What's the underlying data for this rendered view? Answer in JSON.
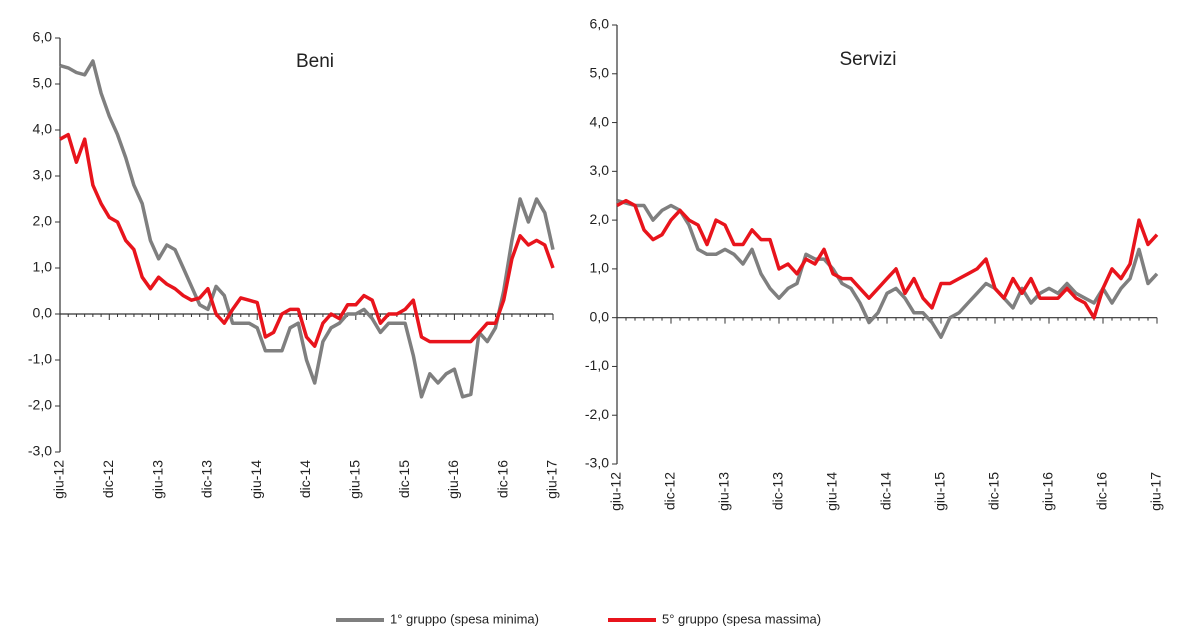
{
  "chart_data": [
    {
      "type": "line",
      "title": "Beni",
      "categories": [
        "giu-12",
        null,
        null,
        null,
        null,
        null,
        "dic-12",
        null,
        null,
        null,
        null,
        null,
        "giu-13",
        null,
        null,
        null,
        null,
        null,
        "dic-13",
        null,
        null,
        null,
        null,
        null,
        "giu-14",
        null,
        null,
        null,
        null,
        null,
        "dic-14",
        null,
        null,
        null,
        null,
        null,
        "giu-15",
        null,
        null,
        null,
        null,
        null,
        "dic-15",
        null,
        null,
        null,
        null,
        null,
        "giu-16",
        null,
        null,
        null,
        null,
        null,
        "dic-16",
        null,
        null,
        null,
        null,
        null,
        "giu-17"
      ],
      "ylim": [
        -3,
        6
      ],
      "yticks": [
        {
          "value": -3,
          "label": "-3,0"
        },
        {
          "value": -2,
          "label": "-2,0"
        },
        {
          "value": -1,
          "label": "-1,0"
        },
        {
          "value": 0,
          "label": "0,0"
        },
        {
          "value": 1,
          "label": "1,0"
        },
        {
          "value": 2,
          "label": "2,0"
        },
        {
          "value": 3,
          "label": "3,0"
        },
        {
          "value": 4,
          "label": "4,0"
        },
        {
          "value": 5,
          "label": "5,0"
        },
        {
          "value": 6,
          "label": "6,0"
        }
      ],
      "series": [
        {
          "name": "1° gruppo (spesa minima)",
          "color": "#7f7f7f",
          "values": [
            5.4,
            5.35,
            5.25,
            5.2,
            5.5,
            4.8,
            4.3,
            3.9,
            3.4,
            2.8,
            2.4,
            1.6,
            1.2,
            1.5,
            1.4,
            1.0,
            0.6,
            0.2,
            0.1,
            0.6,
            0.4,
            -0.2,
            -0.2,
            -0.2,
            -0.3,
            -0.8,
            -0.8,
            -0.8,
            -0.3,
            -0.2,
            -1.0,
            -1.5,
            -0.6,
            -0.3,
            -0.2,
            0.0,
            0.0,
            0.1,
            -0.1,
            -0.4,
            -0.2,
            -0.2,
            -0.2,
            -0.9,
            -1.8,
            -1.3,
            -1.5,
            -1.3,
            -1.2,
            -1.8,
            -1.75,
            -0.4,
            -0.6,
            -0.3,
            0.5,
            1.6,
            2.5,
            2.0,
            2.5,
            2.2,
            1.4
          ]
        },
        {
          "name": "5° gruppo (spesa massima)",
          "color": "#e8141c",
          "values": [
            3.8,
            3.9,
            3.3,
            3.8,
            2.8,
            2.4,
            2.1,
            2.0,
            1.6,
            1.4,
            0.8,
            0.55,
            0.8,
            0.65,
            0.55,
            0.4,
            0.3,
            0.35,
            0.55,
            0.0,
            -0.2,
            0.1,
            0.35,
            0.3,
            0.25,
            -0.5,
            -0.4,
            0.0,
            0.1,
            0.1,
            -0.5,
            -0.7,
            -0.2,
            0.0,
            -0.1,
            0.2,
            0.2,
            0.4,
            0.3,
            -0.2,
            0.0,
            0.0,
            0.1,
            0.3,
            -0.5,
            -0.6,
            -0.6,
            -0.6,
            -0.6,
            -0.6,
            -0.6,
            -0.4,
            -0.2,
            -0.2,
            0.3,
            1.2,
            1.7,
            1.5,
            1.6,
            1.5,
            1.0
          ]
        }
      ]
    },
    {
      "type": "line",
      "title": "Servizi",
      "categories": [
        "giu-12",
        null,
        null,
        null,
        null,
        null,
        "dic-12",
        null,
        null,
        null,
        null,
        null,
        "giu-13",
        null,
        null,
        null,
        null,
        null,
        "dic-13",
        null,
        null,
        null,
        null,
        null,
        "giu-14",
        null,
        null,
        null,
        null,
        null,
        "dic-14",
        null,
        null,
        null,
        null,
        null,
        "giu-15",
        null,
        null,
        null,
        null,
        null,
        "dic-15",
        null,
        null,
        null,
        null,
        null,
        "giu-16",
        null,
        null,
        null,
        null,
        null,
        "dic-16",
        null,
        null,
        null,
        null,
        null,
        "giu-17"
      ],
      "ylim": [
        -3,
        6
      ],
      "yticks": [
        {
          "value": -3,
          "label": "-3,0"
        },
        {
          "value": -2,
          "label": "-2,0"
        },
        {
          "value": -1,
          "label": "-1,0"
        },
        {
          "value": 0,
          "label": "0,0"
        },
        {
          "value": 1,
          "label": "1,0"
        },
        {
          "value": 2,
          "label": "2,0"
        },
        {
          "value": 3,
          "label": "3,0"
        },
        {
          "value": 4,
          "label": "4,0"
        },
        {
          "value": 5,
          "label": "5,0"
        },
        {
          "value": 6,
          "label": "6,0"
        }
      ],
      "series": [
        {
          "name": "1° gruppo (spesa minima)",
          "color": "#7f7f7f",
          "values": [
            2.4,
            2.35,
            2.3,
            2.3,
            2.0,
            2.2,
            2.3,
            2.2,
            1.9,
            1.4,
            1.3,
            1.3,
            1.4,
            1.3,
            1.1,
            1.4,
            0.9,
            0.6,
            0.4,
            0.6,
            0.7,
            1.3,
            1.2,
            1.2,
            1.0,
            0.7,
            0.6,
            0.3,
            -0.1,
            0.1,
            0.5,
            0.6,
            0.4,
            0.1,
            0.1,
            -0.1,
            -0.4,
            0.0,
            0.1,
            0.3,
            0.5,
            0.7,
            0.6,
            0.4,
            0.2,
            0.6,
            0.3,
            0.5,
            0.6,
            0.5,
            0.7,
            0.5,
            0.4,
            0.3,
            0.6,
            0.3,
            0.6,
            0.8,
            1.4,
            0.7,
            0.9
          ]
        },
        {
          "name": "5° gruppo (spesa massima)",
          "color": "#e8141c",
          "values": [
            2.3,
            2.4,
            2.3,
            1.8,
            1.6,
            1.7,
            2.0,
            2.2,
            2.0,
            1.9,
            1.5,
            2.0,
            1.9,
            1.5,
            1.5,
            1.8,
            1.6,
            1.6,
            1.0,
            1.1,
            0.9,
            1.2,
            1.1,
            1.4,
            0.9,
            0.8,
            0.8,
            0.6,
            0.4,
            0.6,
            0.8,
            1.0,
            0.5,
            0.8,
            0.4,
            0.2,
            0.7,
            0.7,
            0.8,
            0.9,
            1.0,
            1.2,
            0.6,
            0.4,
            0.8,
            0.5,
            0.8,
            0.4,
            0.4,
            0.4,
            0.6,
            0.4,
            0.3,
            0.0,
            0.6,
            1.0,
            0.8,
            1.1,
            2.0,
            1.5,
            1.7
          ]
        }
      ]
    }
  ]
}
